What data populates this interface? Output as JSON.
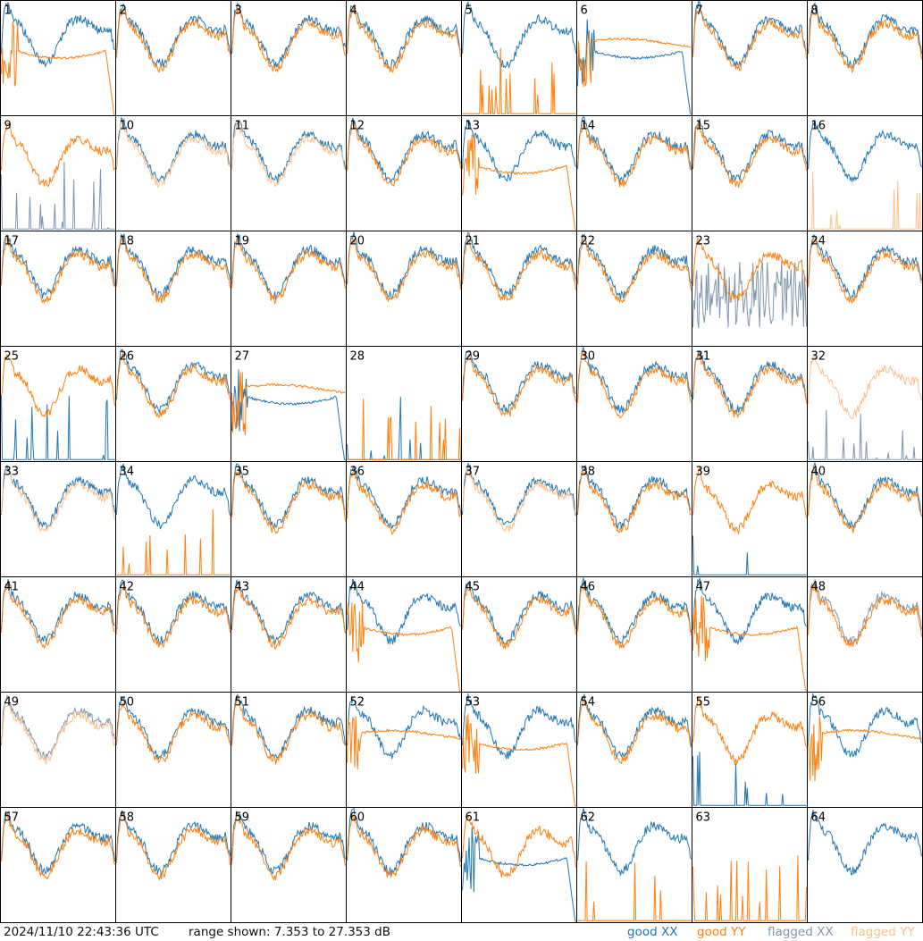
{
  "footer": {
    "timestamp": "2024/11/10 22:43:36 UTC",
    "range_text": "range shown: 7.353 to 27.353 dB"
  },
  "legend": [
    {
      "label": "good XX",
      "color": "#1f77b4"
    },
    {
      "label": "good YY",
      "color": "#ff7f0e"
    },
    {
      "label": "flagged XX",
      "color": "#7f96b0"
    },
    {
      "label": "flagged YY",
      "color": "#ffbf8a"
    }
  ],
  "chart_data": {
    "type": "line",
    "ylim_db": [
      7.353,
      27.353
    ],
    "grid": {
      "rows": 8,
      "cols": 8
    },
    "panels": [
      {
        "id": "1",
        "xx": "good",
        "yy": "good",
        "xxShape": "normal",
        "yyShape": "decay"
      },
      {
        "id": "2",
        "xx": "good",
        "yy": "good",
        "xxShape": "normal",
        "yyShape": "normal"
      },
      {
        "id": "3",
        "xx": "good",
        "yy": "good",
        "xxShape": "normal",
        "yyShape": "normal"
      },
      {
        "id": "4",
        "xx": "good",
        "yy": "good",
        "xxShape": "normal",
        "yyShape": "normal"
      },
      {
        "id": "5",
        "xx": "good",
        "yy": "good",
        "xxShape": "normal",
        "yyShape": "spiky"
      },
      {
        "id": "6",
        "xx": "good",
        "yy": "good",
        "xxShape": "decay",
        "yyShape": "flat"
      },
      {
        "id": "7",
        "xx": "good",
        "yy": "good",
        "xxShape": "normal",
        "yyShape": "normal"
      },
      {
        "id": "8",
        "xx": "good",
        "yy": "good",
        "xxShape": "normal",
        "yyShape": "normal"
      },
      {
        "id": "9",
        "xx": "flagged",
        "yy": "good",
        "xxShape": "spiky",
        "yyShape": "normal"
      },
      {
        "id": "10",
        "xx": "good",
        "yy": "flagged",
        "xxShape": "normal",
        "yyShape": "normal"
      },
      {
        "id": "11",
        "xx": "good",
        "yy": "flagged",
        "xxShape": "normal",
        "yyShape": "normal"
      },
      {
        "id": "12",
        "xx": "good",
        "yy": "good",
        "xxShape": "normal",
        "yyShape": "normal"
      },
      {
        "id": "13",
        "xx": "good",
        "yy": "good",
        "xxShape": "normal",
        "yyShape": "decay"
      },
      {
        "id": "14",
        "xx": "good",
        "yy": "good",
        "xxShape": "normal",
        "yyShape": "normal"
      },
      {
        "id": "15",
        "xx": "good",
        "yy": "good",
        "xxShape": "normal",
        "yyShape": "normal"
      },
      {
        "id": "16",
        "xx": "good",
        "yy": "flagged",
        "xxShape": "normal",
        "yyShape": "spiky"
      },
      {
        "id": "17",
        "xx": "good",
        "yy": "good",
        "xxShape": "normal",
        "yyShape": "normal"
      },
      {
        "id": "18",
        "xx": "good",
        "yy": "good",
        "xxShape": "normal",
        "yyShape": "normal"
      },
      {
        "id": "19",
        "xx": "good",
        "yy": "good",
        "xxShape": "normal",
        "yyShape": "normal"
      },
      {
        "id": "20",
        "xx": "good",
        "yy": "good",
        "xxShape": "normal",
        "yyShape": "normal"
      },
      {
        "id": "21",
        "xx": "good",
        "yy": "good",
        "xxShape": "normal",
        "yyShape": "normal"
      },
      {
        "id": "22",
        "xx": "good",
        "yy": "good",
        "xxShape": "normal",
        "yyShape": "normal"
      },
      {
        "id": "23",
        "xx": "flagged",
        "yy": "good",
        "xxShape": "noisy",
        "yyShape": "normal"
      },
      {
        "id": "24",
        "xx": "good",
        "yy": "good",
        "xxShape": "normal",
        "yyShape": "normal"
      },
      {
        "id": "25",
        "xx": "good",
        "yy": "good",
        "xxShape": "spiky",
        "yyShape": "normal"
      },
      {
        "id": "26",
        "xx": "good",
        "yy": "good",
        "xxShape": "normal",
        "yyShape": "normal"
      },
      {
        "id": "27",
        "xx": "good",
        "yy": "good",
        "xxShape": "decay",
        "yyShape": "flat"
      },
      {
        "id": "28",
        "xx": "good",
        "yy": "good",
        "xxShape": "spiky",
        "yyShape": "spiky"
      },
      {
        "id": "29",
        "xx": "good",
        "yy": "good",
        "xxShape": "normal",
        "yyShape": "normal"
      },
      {
        "id": "30",
        "xx": "good",
        "yy": "good",
        "xxShape": "normal",
        "yyShape": "normal"
      },
      {
        "id": "31",
        "xx": "good",
        "yy": "good",
        "xxShape": "normal",
        "yyShape": "normal"
      },
      {
        "id": "32",
        "xx": "flagged",
        "yy": "flagged",
        "xxShape": "spiky",
        "yyShape": "normal"
      },
      {
        "id": "33",
        "xx": "good",
        "yy": "flagged",
        "xxShape": "normal",
        "yyShape": "normal"
      },
      {
        "id": "34",
        "xx": "good",
        "yy": "good",
        "xxShape": "normal",
        "yyShape": "spiky"
      },
      {
        "id": "35",
        "xx": "good",
        "yy": "good",
        "xxShape": "normal",
        "yyShape": "normal"
      },
      {
        "id": "36",
        "xx": "good",
        "yy": "good",
        "xxShape": "normal",
        "yyShape": "normal"
      },
      {
        "id": "37",
        "xx": "good",
        "yy": "flagged",
        "xxShape": "normal",
        "yyShape": "normal"
      },
      {
        "id": "38",
        "xx": "good",
        "yy": "good",
        "xxShape": "normal",
        "yyShape": "normal"
      },
      {
        "id": "39",
        "xx": "good",
        "yy": "good",
        "xxShape": "spiky",
        "yyShape": "normal"
      },
      {
        "id": "40",
        "xx": "good",
        "yy": "good",
        "xxShape": "normal",
        "yyShape": "normal"
      },
      {
        "id": "41",
        "xx": "good",
        "yy": "good",
        "xxShape": "normal",
        "yyShape": "normal"
      },
      {
        "id": "42",
        "xx": "good",
        "yy": "good",
        "xxShape": "normal",
        "yyShape": "normal"
      },
      {
        "id": "43",
        "xx": "good",
        "yy": "good",
        "xxShape": "normal",
        "yyShape": "normal"
      },
      {
        "id": "44",
        "xx": "good",
        "yy": "good",
        "xxShape": "normal",
        "yyShape": "decay"
      },
      {
        "id": "45",
        "xx": "good",
        "yy": "good",
        "xxShape": "normal",
        "yyShape": "normal"
      },
      {
        "id": "46",
        "xx": "good",
        "yy": "good",
        "xxShape": "normal",
        "yyShape": "normal"
      },
      {
        "id": "47",
        "xx": "good",
        "yy": "good",
        "xxShape": "normal",
        "yyShape": "decay"
      },
      {
        "id": "48",
        "xx": "flagged",
        "yy": "good",
        "xxShape": "normal",
        "yyShape": "normal"
      },
      {
        "id": "49",
        "xx": "flagged",
        "yy": "flagged",
        "xxShape": "normal",
        "yyShape": "normal"
      },
      {
        "id": "50",
        "xx": "good",
        "yy": "good",
        "xxShape": "normal",
        "yyShape": "normal"
      },
      {
        "id": "51",
        "xx": "good",
        "yy": "good",
        "xxShape": "normal",
        "yyShape": "normal"
      },
      {
        "id": "52",
        "xx": "good",
        "yy": "good",
        "xxShape": "normal",
        "yyShape": "flat"
      },
      {
        "id": "53",
        "xx": "good",
        "yy": "good",
        "xxShape": "normal",
        "yyShape": "decay"
      },
      {
        "id": "54",
        "xx": "good",
        "yy": "good",
        "xxShape": "normal",
        "yyShape": "normal"
      },
      {
        "id": "55",
        "xx": "good",
        "yy": "good",
        "xxShape": "spiky",
        "yyShape": "normal"
      },
      {
        "id": "56",
        "xx": "good",
        "yy": "good",
        "xxShape": "normal",
        "yyShape": "flat"
      },
      {
        "id": "57",
        "xx": "good",
        "yy": "good",
        "xxShape": "normal",
        "yyShape": "normal"
      },
      {
        "id": "58",
        "xx": "good",
        "yy": "good",
        "xxShape": "normal",
        "yyShape": "normal"
      },
      {
        "id": "59",
        "xx": "good",
        "yy": "good",
        "xxShape": "normal",
        "yyShape": "normal"
      },
      {
        "id": "60",
        "xx": "good",
        "yy": "good",
        "xxShape": "normal",
        "yyShape": "normal"
      },
      {
        "id": "61",
        "xx": "good",
        "yy": "good",
        "xxShape": "decay",
        "yyShape": "normal"
      },
      {
        "id": "62",
        "xx": "good",
        "yy": "good",
        "xxShape": "normal",
        "yyShape": "spiky"
      },
      {
        "id": "63",
        "xx": "good",
        "yy": "good",
        "xxShape": "none",
        "yyShape": "spiky"
      },
      {
        "id": "64",
        "xx": "good",
        "yy": "good",
        "xxShape": "normal",
        "yyShape": "none"
      }
    ]
  }
}
